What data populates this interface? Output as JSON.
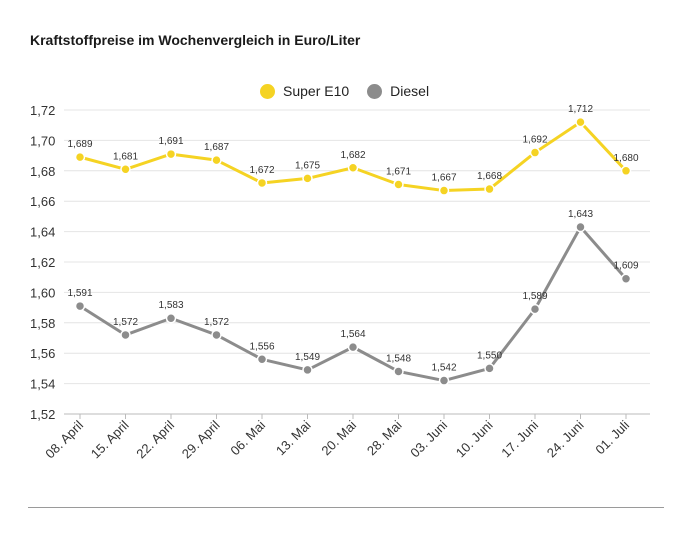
{
  "title": "Kraftstoffpreise im Wochenvergleich in Euro/Liter",
  "colors": {
    "super": "#f5d323",
    "diesel": "#8c8c8c",
    "grid": "#e4e4e4",
    "axis": "#bbbbbb"
  },
  "chart_data": {
    "type": "line",
    "title": "Kraftstoffpreise im Wochenvergleich in Euro/Liter",
    "xlabel": "",
    "ylabel": "",
    "ylim": [
      1.52,
      1.72
    ],
    "yticks": [
      1.52,
      1.54,
      1.56,
      1.58,
      1.6,
      1.62,
      1.64,
      1.66,
      1.68,
      1.7,
      1.72
    ],
    "ytick_labels": [
      "1,52",
      "1,54",
      "1,56",
      "1,58",
      "1,60",
      "1,62",
      "1,64",
      "1,66",
      "1,68",
      "1,70",
      "1,72"
    ],
    "grid": true,
    "legend_position": "top-center",
    "categories": [
      "08. April",
      "15. April",
      "22. April",
      "29. April",
      "06. Mai",
      "13. Mai",
      "20. Mai",
      "28. Mai",
      "03. Juni",
      "10. Juni",
      "17. Juni",
      "24. Juni",
      "01. Juli"
    ],
    "series": [
      {
        "name": "Super E10",
        "values": [
          1.689,
          1.681,
          1.691,
          1.687,
          1.672,
          1.675,
          1.682,
          1.671,
          1.667,
          1.668,
          1.692,
          1.712,
          1.68
        ],
        "labels": [
          "1,689",
          "1,681",
          "1,691",
          "1,687",
          "1,672",
          "1,675",
          "1,682",
          "1,671",
          "1,667",
          "1,668",
          "1,692",
          "1,712",
          "1,680"
        ]
      },
      {
        "name": "Diesel",
        "values": [
          1.591,
          1.572,
          1.583,
          1.572,
          1.556,
          1.549,
          1.564,
          1.548,
          1.542,
          1.55,
          1.589,
          1.643,
          1.609
        ],
        "labels": [
          "1,591",
          "1,572",
          "1,583",
          "1,572",
          "1,556",
          "1,549",
          "1,564",
          "1,548",
          "1,542",
          "1,550",
          "1,589",
          "1,643",
          "1,609"
        ]
      }
    ]
  }
}
